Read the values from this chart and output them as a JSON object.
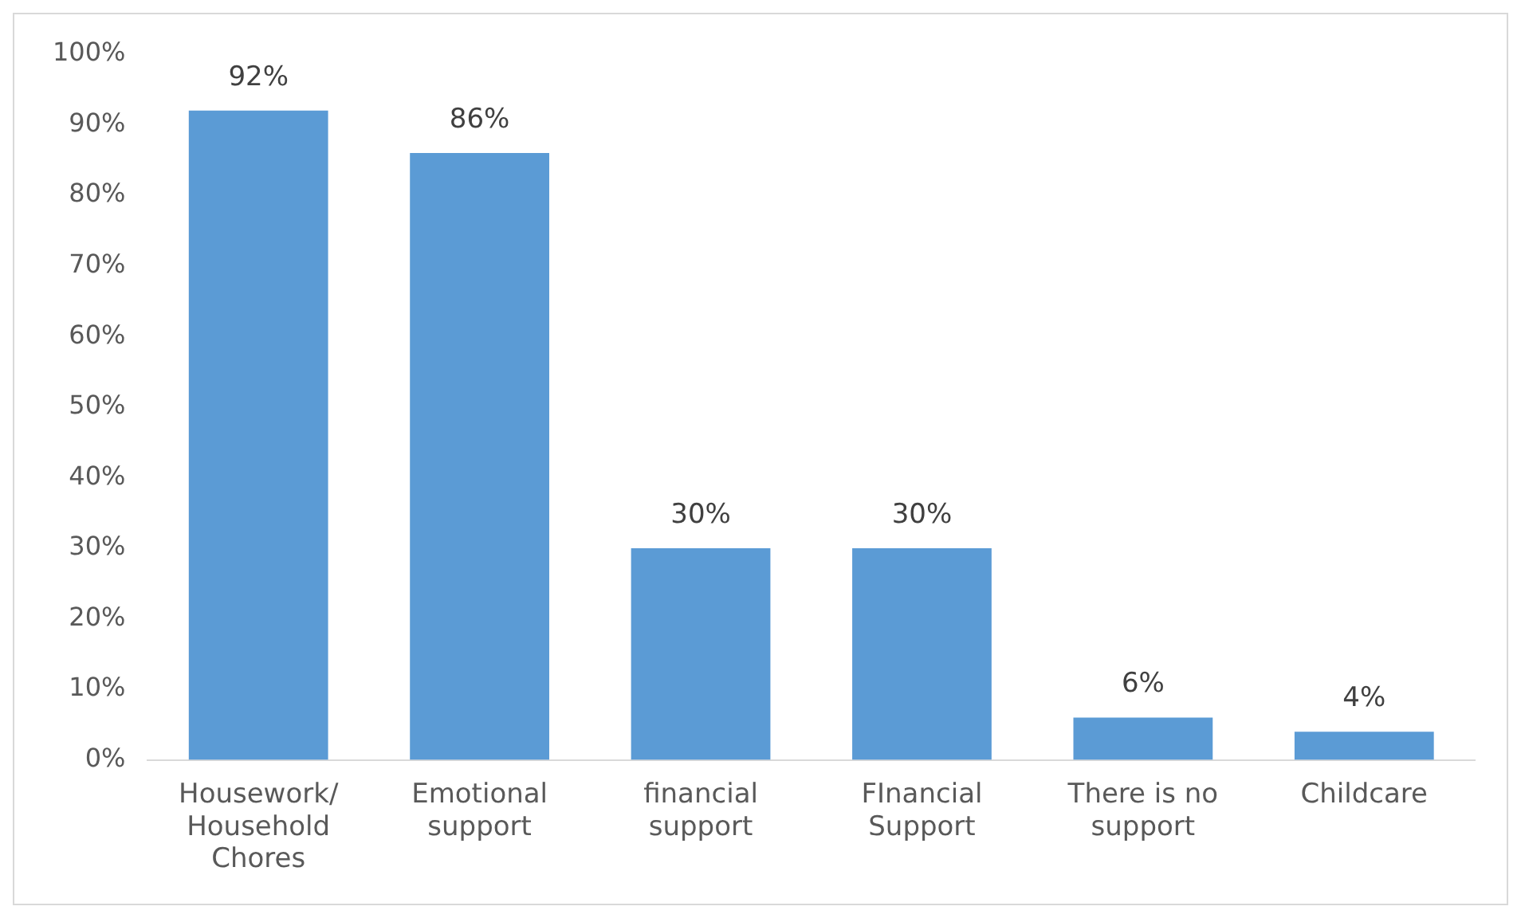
{
  "chart_data": {
    "type": "bar",
    "categories": [
      "Housework/Household Chores",
      "Emotional support",
      "financial support",
      "FInancial Support",
      "There is no support",
      "Childcare"
    ],
    "values": [
      92,
      86,
      30,
      30,
      6,
      4
    ],
    "value_labels": [
      "92%",
      "86%",
      "30%",
      "30%",
      "6%",
      "4%"
    ],
    "color": "#5b9bd5",
    "ylim": [
      0,
      100
    ],
    "yticks": [
      {
        "value": 0,
        "label": "0%"
      },
      {
        "value": 10,
        "label": "10%"
      },
      {
        "value": 20,
        "label": "20%"
      },
      {
        "value": 30,
        "label": "30%"
      },
      {
        "value": 40,
        "label": "40%"
      },
      {
        "value": 50,
        "label": "50%"
      },
      {
        "value": 60,
        "label": "60%"
      },
      {
        "value": 70,
        "label": "70%"
      },
      {
        "value": 80,
        "label": "80%"
      },
      {
        "value": 90,
        "label": "90%"
      },
      {
        "value": 100,
        "label": "100%"
      }
    ],
    "grid": false,
    "legend": false
  }
}
